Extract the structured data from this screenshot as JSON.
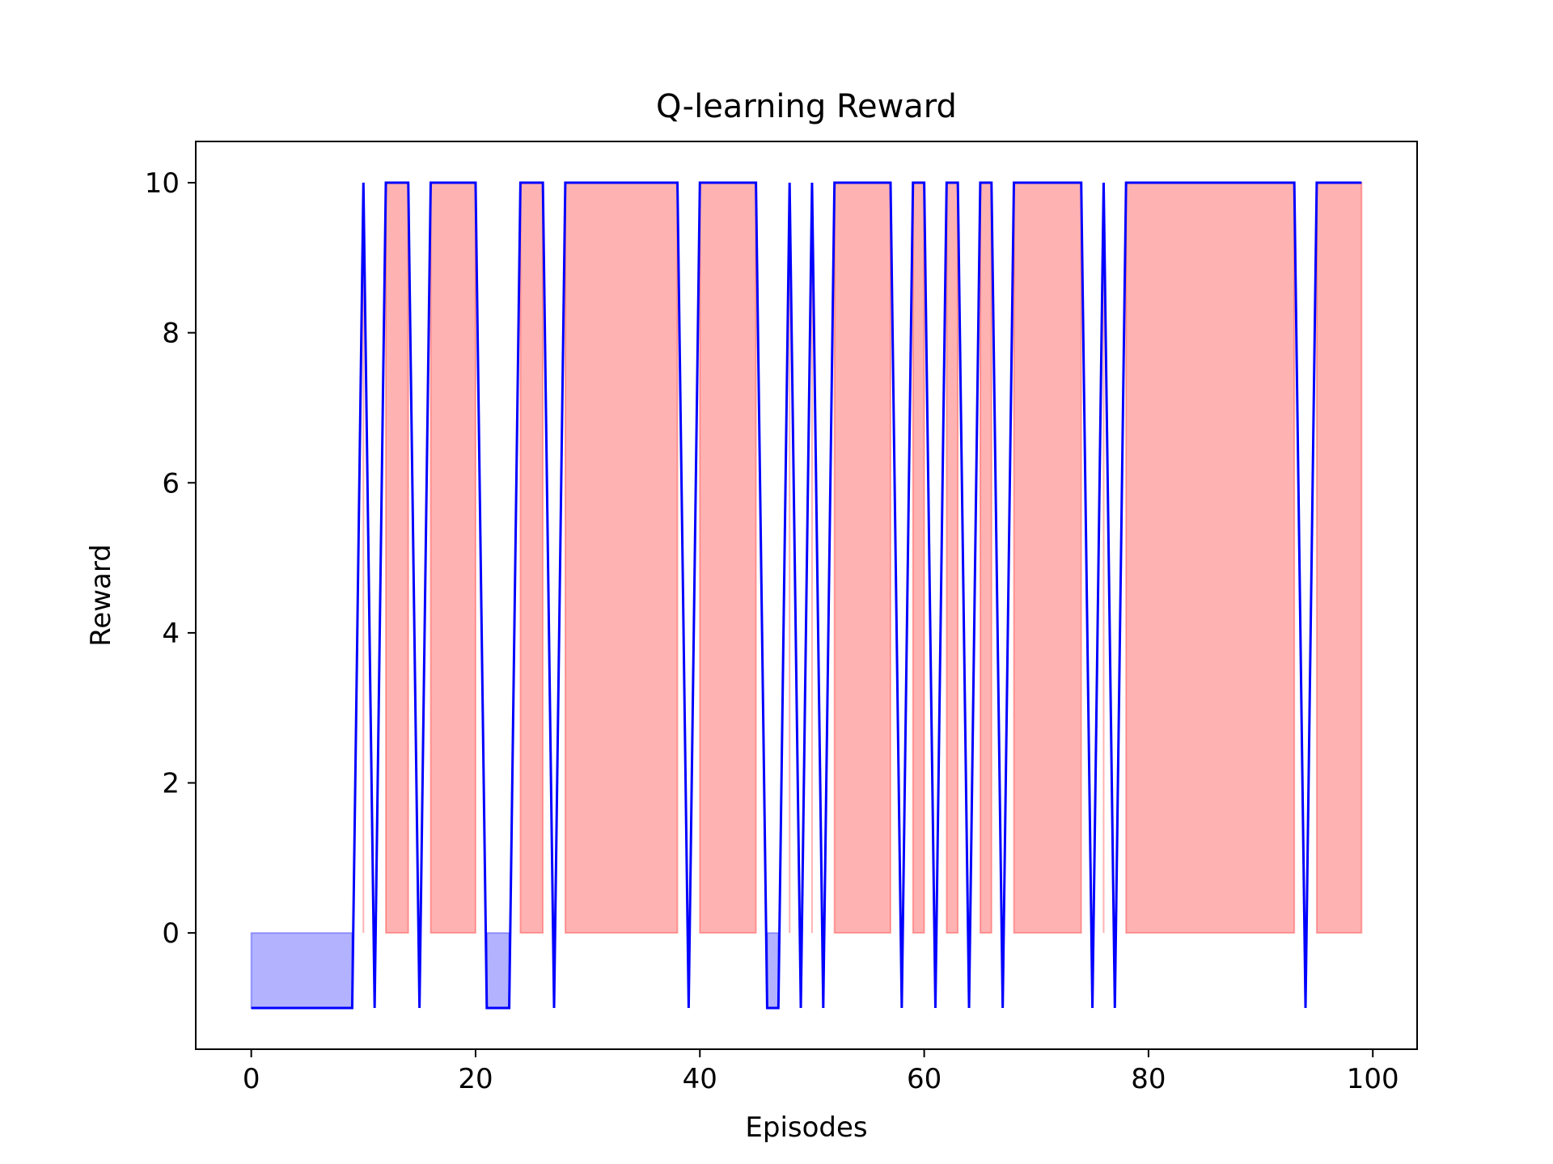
{
  "chart_data": {
    "type": "line",
    "title": "Q-learning Reward",
    "xlabel": "Episodes",
    "ylabel": "Reward",
    "xlim": [
      -4.95,
      103.95
    ],
    "ylim": [
      -1.55,
      10.55
    ],
    "xticks": [
      0,
      20,
      40,
      60,
      80,
      100
    ],
    "yticks": [
      0,
      2,
      4,
      6,
      8,
      10
    ],
    "grid": false,
    "colors": {
      "line": "#0000ff",
      "positive_fill": "#ff0000",
      "negative_fill": "#0000ff",
      "fill_alpha": 0.3
    },
    "series": [
      {
        "values": [
          -1,
          -1,
          -1,
          -1,
          -1,
          -1,
          -1,
          -1,
          -1,
          -1,
          10,
          -1,
          10,
          10,
          10,
          -1,
          10,
          10,
          10,
          10,
          10,
          -1,
          -1,
          -1,
          10,
          10,
          10,
          -1,
          10,
          10,
          10,
          10,
          10,
          10,
          10,
          10,
          10,
          10,
          10,
          -1,
          10,
          10,
          10,
          10,
          10,
          10,
          -1,
          -1,
          10,
          -1,
          10,
          -1,
          10,
          10,
          10,
          10,
          10,
          10,
          -1,
          10,
          10,
          -1,
          10,
          10,
          -1,
          10,
          10,
          -1,
          10,
          10,
          10,
          10,
          10,
          10,
          10,
          -1,
          10,
          -1,
          10,
          10,
          10,
          10,
          10,
          10,
          10,
          10,
          10,
          10,
          10,
          10,
          10,
          10,
          10,
          10,
          -1,
          10,
          10,
          10,
          10,
          10
        ]
      }
    ]
  }
}
